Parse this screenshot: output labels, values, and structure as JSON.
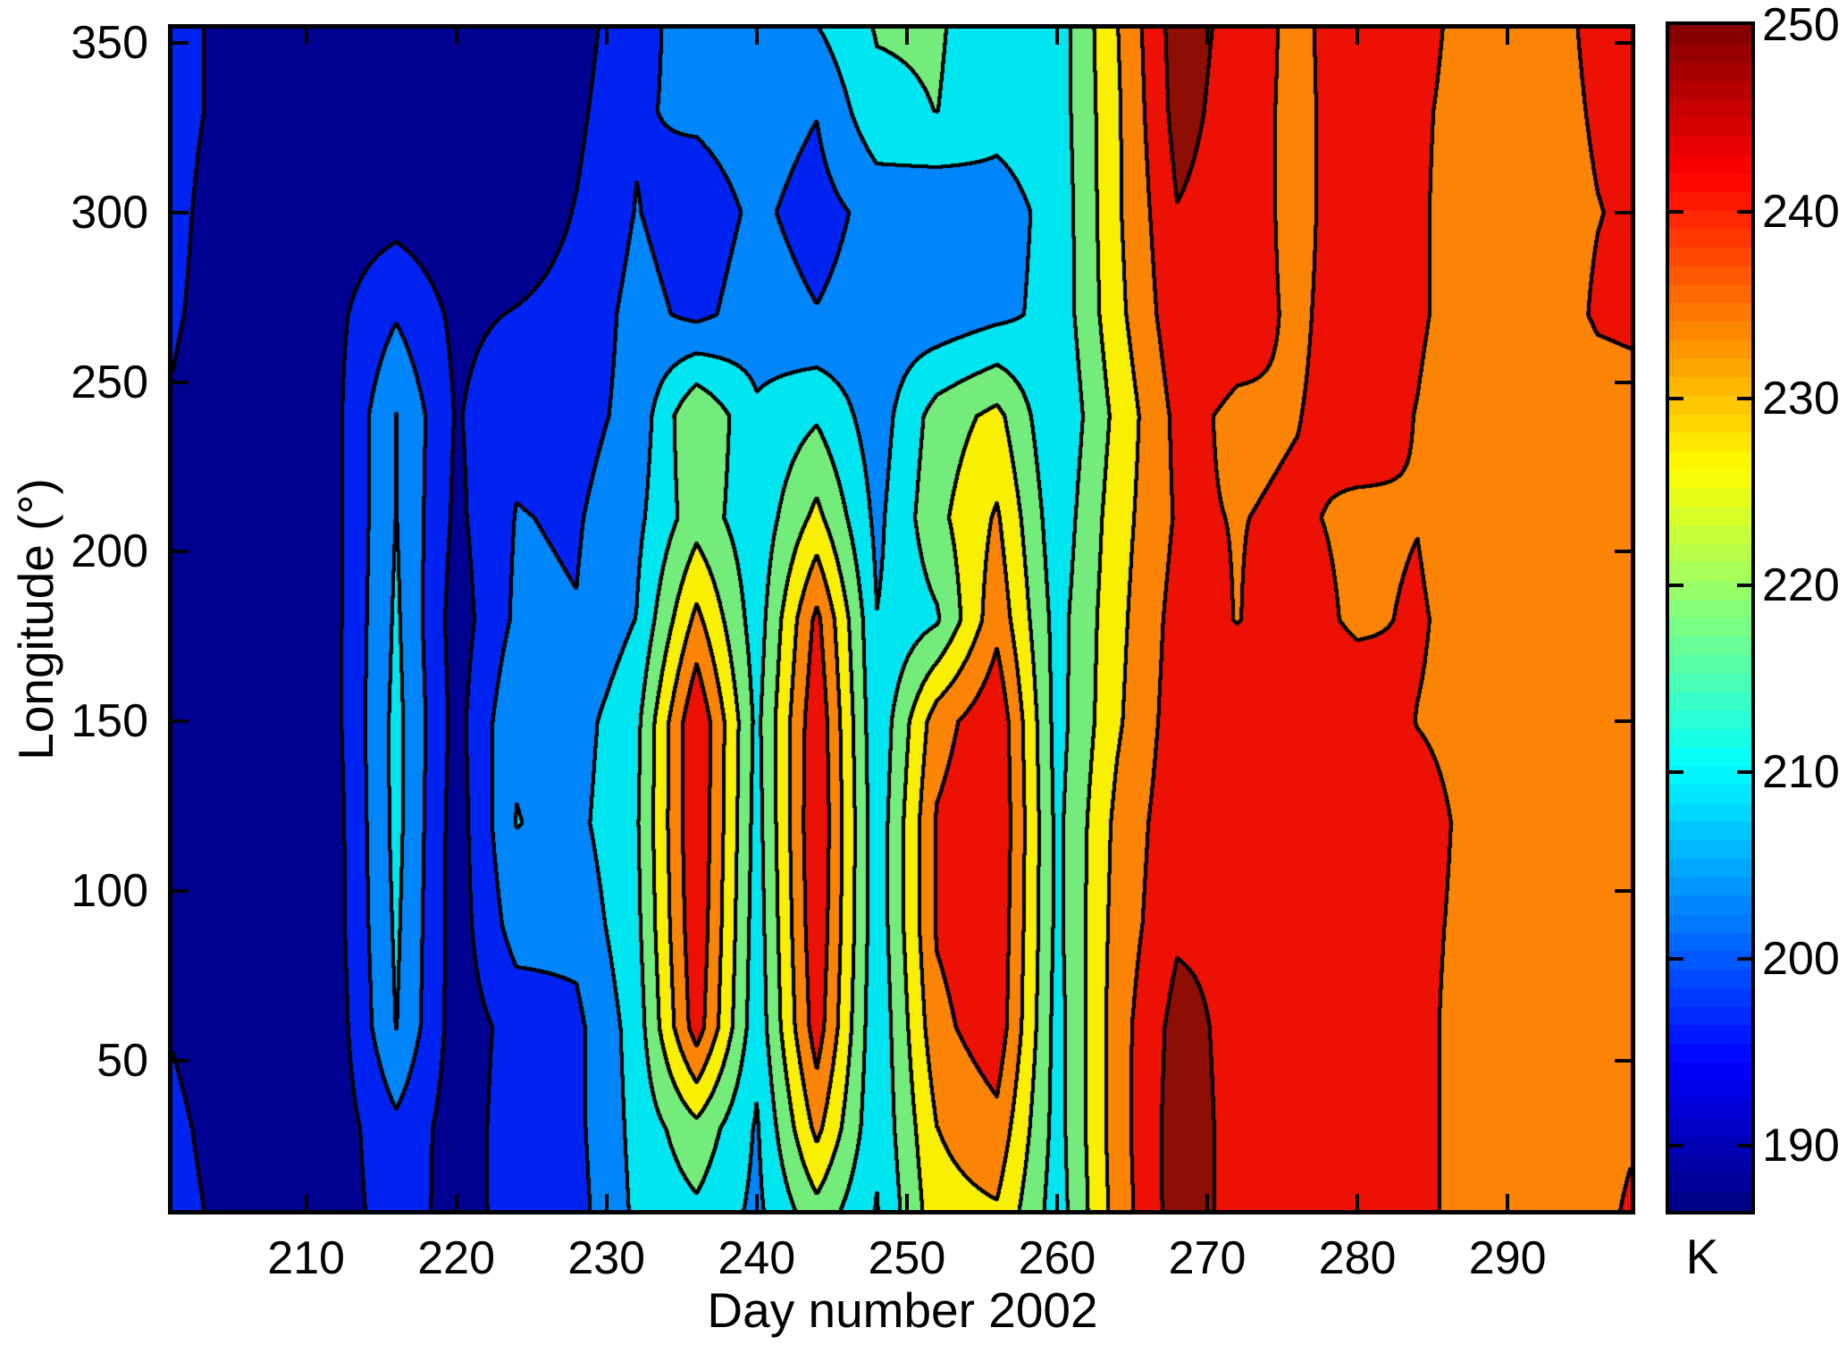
{
  "chart_data": {
    "type": "heatmap",
    "subtype": "filled-contour",
    "title": "",
    "xlabel": "Day number 2002",
    "ylabel": "Longitude (°)",
    "colorbar_label": "K",
    "colormap": "jet",
    "grid_on": false,
    "x_range": [
      201.1,
      298.2
    ],
    "y_range": [
      6,
      354.2
    ],
    "x_ticks": [
      210,
      220,
      230,
      240,
      250,
      260,
      270,
      280,
      290
    ],
    "y_ticks": [
      50,
      100,
      150,
      200,
      250,
      300,
      350
    ],
    "colorbar_range": [
      186.5,
      250
    ],
    "colorbar_ticks": [
      190,
      200,
      210,
      220,
      230,
      240,
      250
    ],
    "contour_levels": [
      193.6,
      200.7,
      207.8,
      214.9,
      222.0,
      229.1,
      236.2,
      243.3
    ],
    "band_colors": [
      "#000091",
      "#0023F2",
      "#0086FA",
      "#00E6F0",
      "#74EC7C",
      "#F8F000",
      "#FB8405",
      "#EC1005",
      "#8E0E04"
    ],
    "contour_line_color": "#000000",
    "grid_days": [
      200,
      204,
      208,
      212,
      216,
      220,
      224,
      228,
      232,
      236,
      240,
      244,
      248,
      252,
      256,
      260,
      264,
      268,
      272,
      276,
      280,
      284,
      288,
      292,
      296,
      300
    ],
    "grid_longitudes": [
      0,
      30,
      60,
      90,
      120,
      150,
      180,
      210,
      240,
      270,
      300,
      330,
      360
    ],
    "values": [
      [
        197,
        193,
        190,
        190,
        197,
        191,
        196,
        198,
        209,
        212,
        206,
        217,
        207,
        226,
        227,
        211,
        232,
        247,
        241,
        240,
        241,
        238,
        233,
        232,
        234,
        241
      ],
      [
        196,
        192,
        189,
        190,
        199,
        190,
        197,
        199,
        210,
        220,
        207,
        231,
        209,
        229,
        234,
        212,
        233,
        247,
        241,
        240,
        241,
        238,
        233,
        232,
        233,
        237
      ],
      [
        194,
        191,
        189,
        190,
        208,
        190,
        196,
        199,
        211,
        240,
        210,
        240,
        209,
        234,
        241,
        212,
        233,
        246,
        241,
        241,
        240,
        238,
        233,
        232,
        232,
        234
      ],
      [
        192,
        190,
        188,
        191,
        209,
        190,
        204,
        203,
        213,
        242,
        211,
        242,
        210,
        237,
        242,
        213,
        232,
        242,
        242,
        241,
        241,
        238,
        234,
        233,
        232,
        233
      ],
      [
        191,
        189,
        188,
        191,
        210,
        190,
        208,
        206,
        214,
        243,
        212,
        243,
        210,
        237,
        243,
        213,
        231,
        241,
        242,
        241,
        241,
        239,
        234,
        233,
        232,
        232
      ],
      [
        191,
        188,
        188,
        192,
        210,
        191,
        207,
        205,
        213,
        243,
        213,
        242,
        209,
        233,
        242,
        212,
        228,
        240,
        241,
        240,
        241,
        236,
        234,
        232,
        231,
        232
      ],
      [
        192,
        189,
        189,
        192,
        209,
        190,
        202,
        201,
        208,
        231,
        211,
        238,
        208,
        214,
        234,
        212,
        227,
        239,
        236,
        239,
        235,
        237,
        233,
        232,
        231,
        232
      ],
      [
        193,
        190,
        190,
        192,
        208,
        192,
        201,
        200,
        206,
        219,
        210,
        224,
        206,
        220,
        230,
        210,
        226,
        237,
        236,
        237,
        235,
        236,
        232,
        231,
        231,
        231
      ],
      [
        194,
        191,
        190,
        192,
        208,
        193,
        199,
        198,
        203,
        222,
        209,
        214,
        204,
        218,
        224,
        208,
        224,
        238,
        235,
        236,
        239,
        236,
        232,
        231,
        233,
        234
      ],
      [
        195,
        192,
        191,
        192,
        200,
        192,
        194,
        196,
        203,
        199,
        204,
        201,
        204,
        203,
        206,
        210,
        227,
        241,
        239,
        235,
        240,
        237,
        233,
        232,
        237,
        238
      ],
      [
        196,
        192,
        190,
        190,
        191,
        189,
        189,
        194,
        201,
        197,
        202,
        198,
        203,
        202,
        205,
        210,
        228,
        243,
        240,
        234,
        241,
        237,
        233,
        233,
        236,
        238
      ],
      [
        196,
        193,
        190,
        189,
        189,
        188,
        189,
        192,
        200,
        202,
        204,
        201,
        213,
        215,
        210,
        211,
        228,
        246,
        240,
        234,
        241,
        237,
        234,
        233,
        237,
        239
      ],
      [
        196,
        193,
        190,
        188,
        188,
        187,
        188,
        190,
        199,
        203,
        206,
        209,
        216,
        216,
        210,
        211,
        229,
        247,
        241,
        234,
        242,
        238,
        234,
        233,
        238,
        240
      ]
    ]
  }
}
